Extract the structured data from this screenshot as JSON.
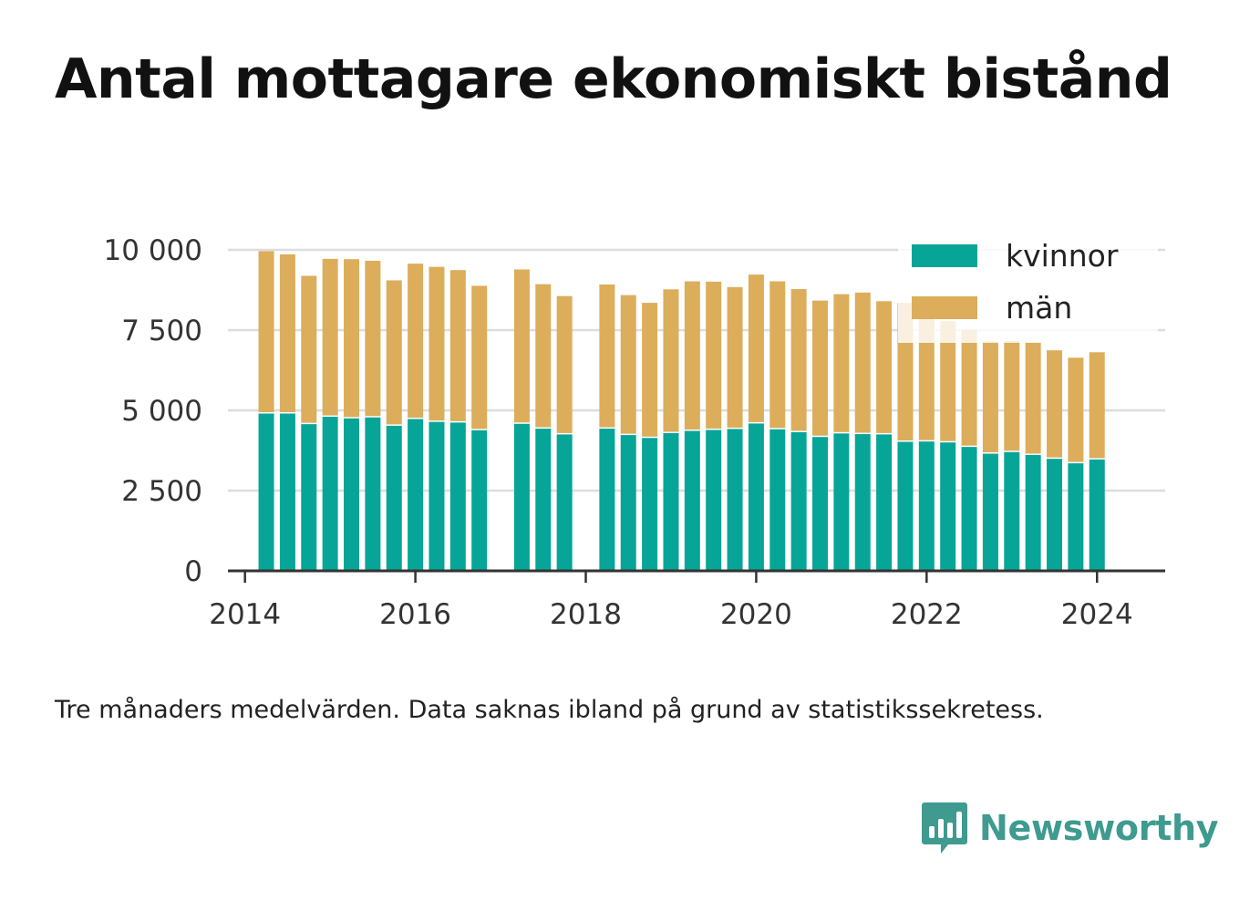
{
  "chart_data": {
    "type": "bar",
    "stacked": true,
    "title": "Antal mottagare ekonomiskt bistånd",
    "caption": "Tre månaders medelvärden. Data saknas ibland på grund av statistikssekretess.",
    "xlabel": "",
    "ylabel": "",
    "ylim": [
      0,
      10000
    ],
    "xlim": [
      2013.8,
      2024.8
    ],
    "yticks": [
      {
        "value": 0,
        "label": "0"
      },
      {
        "value": 2500,
        "label": "2 500"
      },
      {
        "value": 5000,
        "label": "5 000"
      },
      {
        "value": 7500,
        "label": "7 500"
      },
      {
        "value": 10000,
        "label": "10 000"
      }
    ],
    "xticks": [
      {
        "value": 2014,
        "label": "2014"
      },
      {
        "value": 2016,
        "label": "2016"
      },
      {
        "value": 2018,
        "label": "2018"
      },
      {
        "value": 2020,
        "label": "2020"
      },
      {
        "value": 2022,
        "label": "2022"
      },
      {
        "value": 2024,
        "label": "2024"
      }
    ],
    "grid": true,
    "legend_position": "top-right",
    "x": [
      2014.25,
      2014.5,
      2014.75,
      2015.0,
      2015.25,
      2015.5,
      2015.75,
      2016.0,
      2016.25,
      2016.5,
      2016.75,
      2017.25,
      2017.5,
      2017.75,
      2018.25,
      2018.5,
      2018.75,
      2019.0,
      2019.25,
      2019.5,
      2019.75,
      2020.0,
      2020.25,
      2020.5,
      2020.75,
      2021.0,
      2021.25,
      2021.5,
      2021.75,
      2022.0,
      2022.25,
      2022.5,
      2022.75,
      2023.0,
      2023.25,
      2023.5,
      2023.75,
      2024.0
    ],
    "series": [
      {
        "name": "kvinnor",
        "color": "#06a598",
        "values": [
          4900,
          4900,
          4570,
          4800,
          4750,
          4780,
          4520,
          4730,
          4640,
          4620,
          4380,
          4580,
          4430,
          4250,
          4430,
          4230,
          4140,
          4290,
          4360,
          4390,
          4420,
          4590,
          4410,
          4320,
          4170,
          4280,
          4260,
          4250,
          4020,
          4030,
          4000,
          3860,
          3650,
          3700,
          3610,
          3490,
          3350,
          3470
        ]
      },
      {
        "name": "män",
        "color": "#dcad5b",
        "values": [
          5060,
          4960,
          4620,
          4920,
          4960,
          4880,
          4530,
          4840,
          4830,
          4750,
          4500,
          4810,
          4500,
          4310,
          4490,
          4360,
          4210,
          4480,
          4660,
          4620,
          4420,
          4640,
          4610,
          4460,
          4250,
          4340,
          4410,
          4150,
          4330,
          4080,
          3780,
          3650,
          3500,
          3460,
          3510,
          3380,
          3290,
          3340
        ]
      }
    ]
  },
  "brand": {
    "name": "Newsworthy",
    "icon": "bar-chart-logo-icon"
  }
}
